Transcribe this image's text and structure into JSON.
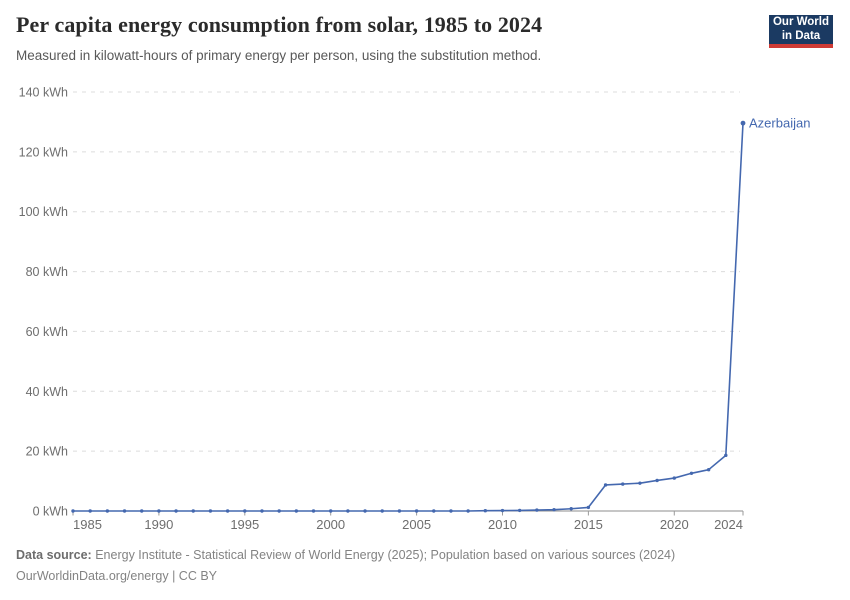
{
  "header": {
    "title": "Per capita energy consumption from solar, 1985 to 2024",
    "subtitle": "Measured in kilowatt-hours of primary energy per person, using the substitution method."
  },
  "logo": {
    "line1": "Our World",
    "line2": "in Data",
    "bg_color": "#1b3a62",
    "accent_color": "#cf3b35"
  },
  "chart_data": {
    "type": "line",
    "title": "Per capita energy consumption from solar, 1985 to 2024",
    "xlabel": "",
    "ylabel": "kWh",
    "xlim": [
      1985,
      2024
    ],
    "ylim": [
      0,
      140
    ],
    "xticks": [
      1985,
      1990,
      1995,
      2000,
      2005,
      2010,
      2015,
      2020,
      2024
    ],
    "yticks": [
      0,
      20,
      40,
      60,
      80,
      100,
      120,
      140
    ],
    "y_unit_suffix": " kWh",
    "grid": "horizontal dashed",
    "legend_position": "end-of-line label",
    "marker": "dot-every-year",
    "series": [
      {
        "name": "Azerbaijan",
        "color": "#4468af",
        "x": [
          1985,
          1986,
          1987,
          1988,
          1989,
          1990,
          1991,
          1992,
          1993,
          1994,
          1995,
          1996,
          1997,
          1998,
          1999,
          2000,
          2001,
          2002,
          2003,
          2004,
          2005,
          2006,
          2007,
          2008,
          2009,
          2010,
          2011,
          2012,
          2013,
          2014,
          2015,
          2016,
          2017,
          2018,
          2019,
          2020,
          2021,
          2022,
          2023,
          2024
        ],
        "values": [
          0,
          0,
          0,
          0,
          0,
          0,
          0,
          0,
          0,
          0,
          0,
          0,
          0,
          0,
          0,
          0,
          0,
          0,
          0,
          0,
          0,
          0,
          0,
          0,
          0.1,
          0.15,
          0.2,
          0.3,
          0.45,
          0.75,
          1.2,
          8.7,
          9.0,
          9.3,
          10.2,
          11.0,
          12.6,
          13.8,
          18.6,
          129.6
        ]
      }
    ]
  },
  "footer": {
    "source_label": "Data source:",
    "source_text": "Energy Institute - Statistical Review of World Energy (2025); Population based on various sources (2024)",
    "license": "OurWorldinData.org/energy | CC BY"
  }
}
